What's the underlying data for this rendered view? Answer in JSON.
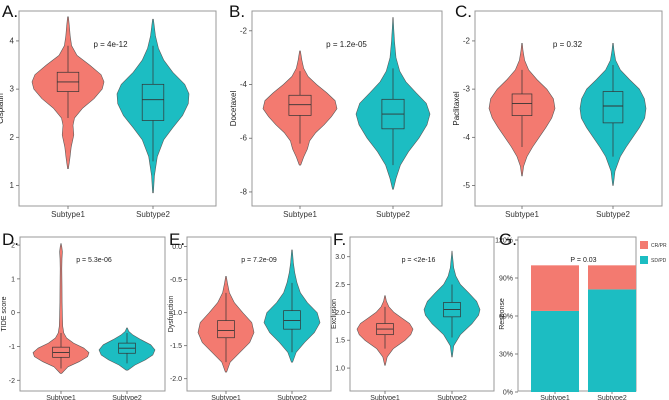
{
  "colors": {
    "subtype1": "#F37A70",
    "subtype2": "#1CBDC2",
    "frame": "#999999",
    "box": "#333333"
  },
  "chart_data": [
    {
      "panel": "A.",
      "type": "violin",
      "ylabel": "Cisplatin",
      "pvalue": "p = 4e-12",
      "categories": [
        "Subtype1",
        "Subtype2"
      ],
      "ylim": [
        0.7,
        4.6
      ],
      "yticks": [
        1,
        2,
        3,
        4
      ],
      "series": [
        {
          "name": "Subtype1",
          "median": 3.15,
          "q1": 2.95,
          "q3": 3.35,
          "whisker_low": 2.4,
          "whisker_high": 3.9,
          "min": 1.35,
          "max": 4.5,
          "density": [
            [
              1.35,
              0.01
            ],
            [
              1.55,
              0.05
            ],
            [
              1.8,
              0.09
            ],
            [
              2.05,
              0.16
            ],
            [
              2.25,
              0.14
            ],
            [
              2.4,
              0.18
            ],
            [
              2.6,
              0.4
            ],
            [
              2.8,
              0.72
            ],
            [
              3.0,
              0.95
            ],
            [
              3.15,
              1.0
            ],
            [
              3.3,
              0.92
            ],
            [
              3.5,
              0.6
            ],
            [
              3.7,
              0.25
            ],
            [
              3.9,
              0.1
            ],
            [
              4.1,
              0.06
            ],
            [
              4.3,
              0.04
            ],
            [
              4.5,
              0.01
            ]
          ]
        },
        {
          "name": "Subtype2",
          "median": 2.78,
          "q1": 2.35,
          "q3": 3.1,
          "whisker_low": 1.5,
          "whisker_high": 3.9,
          "min": 0.85,
          "max": 4.45,
          "density": [
            [
              0.85,
              0.01
            ],
            [
              1.2,
              0.04
            ],
            [
              1.6,
              0.12
            ],
            [
              1.95,
              0.3
            ],
            [
              2.2,
              0.55
            ],
            [
              2.45,
              0.82
            ],
            [
              2.7,
              0.98
            ],
            [
              2.9,
              1.0
            ],
            [
              3.1,
              0.88
            ],
            [
              3.35,
              0.55
            ],
            [
              3.6,
              0.3
            ],
            [
              3.85,
              0.15
            ],
            [
              4.1,
              0.07
            ],
            [
              4.45,
              0.01
            ]
          ]
        }
      ]
    },
    {
      "panel": "B.",
      "type": "violin",
      "ylabel": "Docetaxel",
      "pvalue": "p = 1.2e-05",
      "categories": [
        "Subtype1",
        "Subtype2"
      ],
      "ylim": [
        -8.3,
        -1.3
      ],
      "yticks": [
        -2,
        -4,
        -6,
        -8
      ],
      "series": [
        {
          "name": "Subtype1",
          "median": -4.75,
          "q1": -5.15,
          "q3": -4.4,
          "whisker_low": -6.2,
          "whisker_high": -3.5,
          "min": -7.0,
          "max": -2.75,
          "density": [
            [
              -7.0,
              0.02
            ],
            [
              -6.7,
              0.1
            ],
            [
              -6.4,
              0.2
            ],
            [
              -6.1,
              0.26
            ],
            [
              -5.8,
              0.42
            ],
            [
              -5.5,
              0.65
            ],
            [
              -5.2,
              0.85
            ],
            [
              -4.9,
              1.0
            ],
            [
              -4.6,
              0.95
            ],
            [
              -4.3,
              0.72
            ],
            [
              -4.0,
              0.45
            ],
            [
              -3.7,
              0.22
            ],
            [
              -3.4,
              0.1
            ],
            [
              -3.1,
              0.05
            ],
            [
              -2.75,
              0.01
            ]
          ]
        },
        {
          "name": "Subtype2",
          "median": -5.1,
          "q1": -5.65,
          "q3": -4.55,
          "whisker_low": -7.0,
          "whisker_high": -3.4,
          "min": -7.9,
          "max": -1.5,
          "density": [
            [
              -7.9,
              0.01
            ],
            [
              -7.5,
              0.08
            ],
            [
              -7.0,
              0.2
            ],
            [
              -6.5,
              0.42
            ],
            [
              -6.0,
              0.7
            ],
            [
              -5.5,
              0.92
            ],
            [
              -5.1,
              1.0
            ],
            [
              -4.7,
              0.9
            ],
            [
              -4.3,
              0.62
            ],
            [
              -3.9,
              0.35
            ],
            [
              -3.5,
              0.18
            ],
            [
              -3.0,
              0.08
            ],
            [
              -2.4,
              0.04
            ],
            [
              -1.9,
              0.02
            ],
            [
              -1.5,
              0.005
            ]
          ]
        }
      ]
    },
    {
      "panel": "C.",
      "type": "violin",
      "ylabel": "Paclitaxel",
      "pvalue": "p = 0.32",
      "categories": [
        "Subtype1",
        "Subtype2"
      ],
      "ylim": [
        -5.3,
        -1.4
      ],
      "yticks": [
        -2,
        -3,
        -4,
        -5
      ],
      "series": [
        {
          "name": "Subtype1",
          "median": -3.3,
          "q1": -3.55,
          "q3": -3.1,
          "whisker_low": -4.2,
          "whisker_high": -2.6,
          "min": -4.8,
          "max": -2.05,
          "density": [
            [
              -4.8,
              0.01
            ],
            [
              -4.6,
              0.05
            ],
            [
              -4.4,
              0.15
            ],
            [
              -4.2,
              0.32
            ],
            [
              -4.0,
              0.52
            ],
            [
              -3.8,
              0.72
            ],
            [
              -3.6,
              0.9
            ],
            [
              -3.4,
              1.0
            ],
            [
              -3.2,
              0.95
            ],
            [
              -3.0,
              0.75
            ],
            [
              -2.8,
              0.45
            ],
            [
              -2.6,
              0.2
            ],
            [
              -2.4,
              0.08
            ],
            [
              -2.2,
              0.03
            ],
            [
              -2.05,
              0.01
            ]
          ]
        },
        {
          "name": "Subtype2",
          "median": -3.35,
          "q1": -3.7,
          "q3": -3.05,
          "whisker_low": -4.4,
          "whisker_high": -2.5,
          "min": -5.0,
          "max": -2.05,
          "density": [
            [
              -5.0,
              0.01
            ],
            [
              -4.7,
              0.06
            ],
            [
              -4.4,
              0.22
            ],
            [
              -4.2,
              0.4
            ],
            [
              -4.0,
              0.6
            ],
            [
              -3.8,
              0.8
            ],
            [
              -3.6,
              0.96
            ],
            [
              -3.4,
              1.0
            ],
            [
              -3.2,
              0.95
            ],
            [
              -3.0,
              0.8
            ],
            [
              -2.8,
              0.5
            ],
            [
              -2.6,
              0.22
            ],
            [
              -2.4,
              0.08
            ],
            [
              -2.2,
              0.03
            ],
            [
              -2.05,
              0.01
            ]
          ]
        }
      ]
    },
    {
      "panel": "D.",
      "type": "violin",
      "ylabel": "TIDE score",
      "pvalue": "p = 5.3e-06",
      "categories": [
        "Subtype1",
        "Subtype2"
      ],
      "ylim": [
        -2.05,
        2.15
      ],
      "yticks": [
        2,
        1,
        0,
        -1,
        -2
      ],
      "series": [
        {
          "name": "Subtype1",
          "median": -1.18,
          "q1": -1.32,
          "q3": -1.02,
          "whisker_low": -1.65,
          "whisker_high": -0.6,
          "min": -1.8,
          "max": 2.05,
          "density": [
            [
              -1.8,
              0.02
            ],
            [
              -1.6,
              0.25
            ],
            [
              -1.45,
              0.65
            ],
            [
              -1.3,
              0.95
            ],
            [
              -1.18,
              1.0
            ],
            [
              -1.05,
              0.82
            ],
            [
              -0.9,
              0.45
            ],
            [
              -0.75,
              0.2
            ],
            [
              -0.6,
              0.1
            ],
            [
              -0.4,
              0.06
            ],
            [
              -0.1,
              0.05
            ],
            [
              0.3,
              0.04
            ],
            [
              0.8,
              0.035
            ],
            [
              1.3,
              0.03
            ],
            [
              1.6,
              0.035
            ],
            [
              1.8,
              0.05
            ],
            [
              1.95,
              0.03
            ],
            [
              2.05,
              0.005
            ]
          ]
        },
        {
          "name": "Subtype2",
          "median": -1.05,
          "q1": -1.2,
          "q3": -0.9,
          "whisker_low": -1.5,
          "whisker_high": -0.6,
          "min": -1.7,
          "max": -0.45,
          "density": [
            [
              -1.7,
              0.03
            ],
            [
              -1.55,
              0.28
            ],
            [
              -1.4,
              0.65
            ],
            [
              -1.25,
              0.92
            ],
            [
              -1.1,
              1.0
            ],
            [
              -0.95,
              0.85
            ],
            [
              -0.8,
              0.5
            ],
            [
              -0.65,
              0.2
            ],
            [
              -0.55,
              0.06
            ],
            [
              -0.45,
              0.01
            ]
          ]
        }
      ]
    },
    {
      "panel": "E.",
      "type": "violin",
      "ylabel": "Dysfunction",
      "pvalue": "p = 7.2e-09",
      "categories": [
        "Subtype1",
        "Subtype2"
      ],
      "ylim": [
        -2.05,
        0.1
      ],
      "yticks": [
        0.0,
        -0.5,
        -1.0,
        -1.5,
        -2.0
      ],
      "series": [
        {
          "name": "Subtype1",
          "median": -1.27,
          "q1": -1.38,
          "q3": -1.12,
          "whisker_low": -1.75,
          "whisker_high": -0.7,
          "min": -1.9,
          "max": -0.45,
          "density": [
            [
              -1.9,
              0.02
            ],
            [
              -1.75,
              0.15
            ],
            [
              -1.6,
              0.5
            ],
            [
              -1.45,
              0.85
            ],
            [
              -1.3,
              1.0
            ],
            [
              -1.15,
              0.92
            ],
            [
              -1.0,
              0.6
            ],
            [
              -0.85,
              0.3
            ],
            [
              -0.7,
              0.12
            ],
            [
              -0.55,
              0.05
            ],
            [
              -0.45,
              0.01
            ]
          ]
        },
        {
          "name": "Subtype2",
          "median": -1.12,
          "q1": -1.25,
          "q3": -0.97,
          "whisker_low": -1.6,
          "whisker_high": -0.55,
          "min": -1.75,
          "max": -0.05,
          "density": [
            [
              -1.75,
              0.02
            ],
            [
              -1.6,
              0.15
            ],
            [
              -1.45,
              0.45
            ],
            [
              -1.3,
              0.8
            ],
            [
              -1.15,
              1.0
            ],
            [
              -1.0,
              0.9
            ],
            [
              -0.85,
              0.55
            ],
            [
              -0.7,
              0.3
            ],
            [
              -0.55,
              0.18
            ],
            [
              -0.4,
              0.1
            ],
            [
              -0.25,
              0.05
            ],
            [
              -0.05,
              0.01
            ]
          ]
        }
      ]
    },
    {
      "panel": "F.",
      "type": "violin",
      "ylabel": "Exclusion",
      "pvalue": "p = <2e-16",
      "categories": [
        "Subtype1",
        "Subtype2"
      ],
      "ylim": [
        0.75,
        3.3
      ],
      "yticks": [
        1.0,
        1.5,
        2.0,
        2.5,
        3.0
      ],
      "series": [
        {
          "name": "Subtype1",
          "median": 1.7,
          "q1": 1.6,
          "q3": 1.8,
          "whisker_low": 1.35,
          "whisker_high": 2.1,
          "min": 1.05,
          "max": 2.3,
          "density": [
            [
              1.05,
              0.01
            ],
            [
              1.2,
              0.08
            ],
            [
              1.35,
              0.3
            ],
            [
              1.5,
              0.72
            ],
            [
              1.6,
              0.92
            ],
            [
              1.7,
              1.0
            ],
            [
              1.8,
              0.88
            ],
            [
              1.9,
              0.6
            ],
            [
              2.0,
              0.32
            ],
            [
              2.1,
              0.14
            ],
            [
              2.2,
              0.05
            ],
            [
              2.3,
              0.01
            ]
          ]
        },
        {
          "name": "Subtype2",
          "median": 2.05,
          "q1": 1.92,
          "q3": 2.18,
          "whisker_low": 1.55,
          "whisker_high": 2.5,
          "min": 1.2,
          "max": 3.1,
          "density": [
            [
              1.2,
              0.01
            ],
            [
              1.4,
              0.06
            ],
            [
              1.6,
              0.3
            ],
            [
              1.8,
              0.72
            ],
            [
              1.95,
              0.95
            ],
            [
              2.05,
              1.0
            ],
            [
              2.2,
              0.88
            ],
            [
              2.35,
              0.6
            ],
            [
              2.5,
              0.3
            ],
            [
              2.65,
              0.14
            ],
            [
              2.8,
              0.06
            ],
            [
              3.0,
              0.02
            ],
            [
              3.1,
              0.005
            ]
          ]
        }
      ]
    },
    {
      "panel": "G.",
      "type": "bar",
      "stacked": true,
      "ylabel": "Response",
      "pvalue": "P = 0.03",
      "categories": [
        "Subtype1",
        "Subtype2"
      ],
      "ylim": [
        0,
        120
      ],
      "yticks": [
        "0%",
        "30%",
        "60%",
        "90%",
        "120%"
      ],
      "legend": [
        "CR/PR",
        "SD/PD"
      ],
      "legend_position": "top-right",
      "series": [
        {
          "name": "SD/PD",
          "values": [
            64,
            81
          ]
        },
        {
          "name": "CR/PR",
          "values": [
            36,
            19
          ]
        }
      ]
    }
  ]
}
